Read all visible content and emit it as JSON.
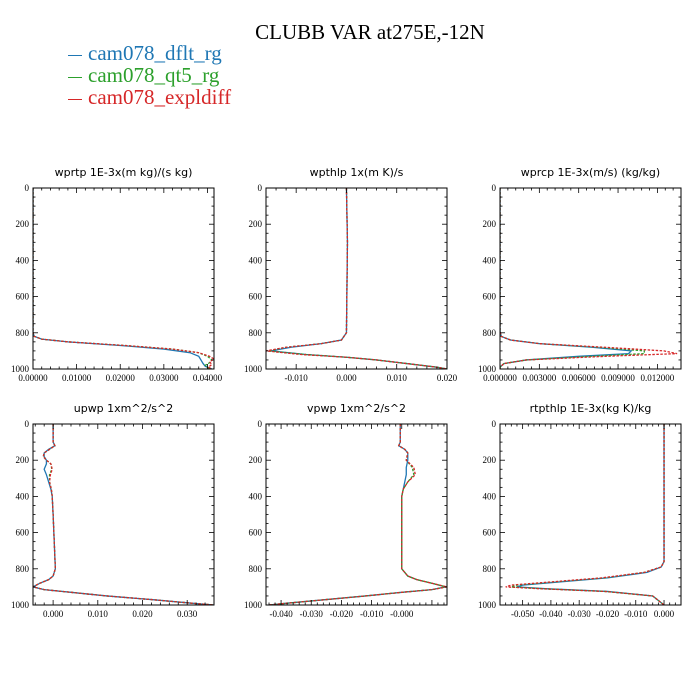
{
  "title": "CLUBB VAR at275E,-12N",
  "legend": [
    {
      "label": "cam078_dflt_rg",
      "color": "#1f77b4",
      "dash": false
    },
    {
      "label": "cam078_qt5_rg",
      "color": "#2ca02c",
      "dash": true
    },
    {
      "label": "cam078_expldiff",
      "color": "#d62728",
      "dash": true
    }
  ],
  "chart_data": [
    {
      "type": "line",
      "title": "wprtp  1E-3x(m kg)/(s kg)",
      "xlim": [
        0,
        0.0415
      ],
      "ylim": [
        0,
        1000
      ],
      "xticks": [
        0,
        0.01,
        0.02,
        0.03,
        0.04
      ],
      "xtick_labels": [
        "0.00000",
        "0.01000",
        "0.02000",
        "0.03000",
        "0.04000"
      ],
      "yticks": [
        0,
        200,
        400,
        600,
        800,
        1000
      ],
      "ytick_labels": [
        "0",
        "200",
        "400",
        "600",
        "800",
        "1000"
      ],
      "series": [
        {
          "y": [
            0,
            800,
            820,
            835,
            850,
            870,
            890,
            910,
            930,
            950,
            970,
            985,
            995,
            1000
          ],
          "values": [
            0,
            0,
            0.0003,
            0.002,
            0.008,
            0.02,
            0.03,
            0.036,
            0.038,
            0.0385,
            0.039,
            0.0395,
            0.0405,
            0.041
          ]
        },
        {
          "y": [
            0,
            800,
            820,
            835,
            850,
            870,
            890,
            910,
            930,
            950,
            965,
            980,
            990,
            1000
          ],
          "values": [
            0,
            0,
            0.0003,
            0.002,
            0.008,
            0.021,
            0.032,
            0.038,
            0.04,
            0.041,
            0.0405,
            0.0395,
            0.04,
            0.0405
          ]
        },
        {
          "y": [
            0,
            800,
            820,
            835,
            850,
            870,
            890,
            910,
            930,
            945,
            960,
            975,
            990,
            1000
          ],
          "values": [
            0,
            0,
            0.0003,
            0.002,
            0.008,
            0.021,
            0.032,
            0.038,
            0.0405,
            0.0415,
            0.0405,
            0.041,
            0.0402,
            0.041
          ]
        }
      ]
    },
    {
      "type": "line",
      "title": "wpthlp  1x(m K)/s",
      "xlim": [
        -0.016,
        0.02
      ],
      "ylim": [
        0,
        1000
      ],
      "xticks": [
        -0.01,
        0,
        0.01,
        0.02
      ],
      "xtick_labels": [
        "-0.010",
        "0.000",
        "0.010",
        "0.020"
      ],
      "yticks": [
        0,
        200,
        400,
        600,
        800,
        1000
      ],
      "ytick_labels": [
        "0",
        "200",
        "400",
        "600",
        "800",
        "1000"
      ],
      "series": [
        {
          "y": [
            0,
            300,
            800,
            840,
            860,
            880,
            900,
            920,
            935,
            950,
            970,
            990,
            1000
          ],
          "values": [
            0,
            0.0002,
            0,
            -0.001,
            -0.005,
            -0.011,
            -0.015,
            -0.008,
            0.0,
            0.006,
            0.012,
            0.018,
            0.02
          ]
        },
        {
          "y": [
            0,
            300,
            800,
            840,
            860,
            880,
            900,
            920,
            935,
            950,
            970,
            990,
            1000
          ],
          "values": [
            0,
            0.0002,
            0,
            -0.001,
            -0.005,
            -0.012,
            -0.0155,
            -0.008,
            0.0,
            0.006,
            0.012,
            0.018,
            0.02
          ]
        },
        {
          "y": [
            0,
            300,
            800,
            840,
            860,
            880,
            900,
            920,
            935,
            950,
            970,
            990,
            1000
          ],
          "values": [
            0,
            0.0002,
            0,
            -0.001,
            -0.005,
            -0.012,
            -0.016,
            -0.009,
            0.0,
            0.006,
            0.012,
            0.018,
            0.02
          ]
        }
      ]
    },
    {
      "type": "line",
      "title": "wprcp  1E-3x(m/s) (kg/kg)",
      "xlim": [
        0,
        0.0138
      ],
      "ylim": [
        0,
        1000
      ],
      "xticks": [
        0,
        0.003,
        0.006,
        0.009,
        0.012
      ],
      "xtick_labels": [
        "0.000000",
        "0.003000",
        "0.006000",
        "0.009000",
        "0.012000"
      ],
      "yticks": [
        0,
        200,
        400,
        600,
        800,
        1000
      ],
      "ytick_labels": [
        "0",
        "200",
        "400",
        "600",
        "800",
        "1000"
      ],
      "series": [
        {
          "y": [
            0,
            790,
            820,
            840,
            860,
            880,
            900,
            915,
            930,
            950,
            970,
            990,
            1000
          ],
          "values": [
            0,
            0,
            0.0001,
            0.0008,
            0.003,
            0.007,
            0.01,
            0.0098,
            0.006,
            0.002,
            0.0003,
            0,
            0
          ]
        },
        {
          "y": [
            0,
            790,
            820,
            840,
            860,
            880,
            900,
            915,
            930,
            950,
            970,
            990,
            1000
          ],
          "values": [
            0,
            0,
            0.0001,
            0.0008,
            0.003,
            0.0075,
            0.011,
            0.011,
            0.007,
            0.002,
            0.0003,
            0,
            0
          ]
        },
        {
          "y": [
            0,
            790,
            820,
            840,
            860,
            880,
            900,
            915,
            930,
            950,
            970,
            990,
            1000
          ],
          "values": [
            0,
            0,
            0.0001,
            0.0008,
            0.003,
            0.008,
            0.0125,
            0.0135,
            0.008,
            0.002,
            0.0003,
            0,
            0
          ]
        }
      ]
    },
    {
      "type": "line",
      "title": "upwp  1xm^2/s^2",
      "xlim": [
        -0.0045,
        0.036
      ],
      "ylim": [
        0,
        1000
      ],
      "xticks": [
        0,
        0.01,
        0.02,
        0.03
      ],
      "xtick_labels": [
        "0.000",
        "0.010",
        "0.020",
        "0.030"
      ],
      "yticks": [
        0,
        200,
        400,
        600,
        800,
        1000
      ],
      "ytick_labels": [
        "0",
        "200",
        "400",
        "600",
        "800",
        "1000"
      ],
      "series": [
        {
          "y": [
            0,
            100,
            120,
            140,
            160,
            180,
            200,
            220,
            250,
            280,
            320,
            360,
            400,
            500,
            800,
            840,
            860,
            880,
            900,
            915,
            930,
            950,
            970,
            990,
            1000
          ],
          "values": [
            0,
            0,
            0.0004,
            -0.001,
            -0.002,
            -0.002,
            -0.0015,
            -0.0015,
            -0.002,
            -0.0015,
            -0.001,
            -0.0005,
            -0.0002,
            0,
            0.0005,
            0,
            -0.001,
            -0.003,
            -0.0045,
            -0.002,
            0.004,
            0.012,
            0.022,
            0.031,
            0.036
          ]
        },
        {
          "y": [
            0,
            100,
            120,
            140,
            160,
            180,
            200,
            220,
            250,
            280,
            320,
            360,
            400,
            500,
            800,
            840,
            860,
            880,
            900,
            915,
            930,
            950,
            970,
            990,
            1000
          ],
          "values": [
            0,
            0,
            0.0004,
            -0.0008,
            -0.002,
            -0.0022,
            -0.0015,
            -0.0005,
            -0.0003,
            -0.0008,
            -0.0008,
            -0.0004,
            -0.0002,
            0,
            0.0005,
            0,
            -0.001,
            -0.003,
            -0.0045,
            -0.002,
            0.004,
            0.012,
            0.022,
            0.031,
            0.036
          ]
        },
        {
          "y": [
            0,
            100,
            120,
            140,
            160,
            180,
            200,
            220,
            250,
            280,
            320,
            360,
            400,
            500,
            800,
            840,
            860,
            880,
            900,
            915,
            930,
            950,
            970,
            990,
            1000
          ],
          "values": [
            0,
            0,
            0.0004,
            -0.0008,
            -0.002,
            -0.0022,
            -0.0015,
            -0.0005,
            -0.0002,
            -0.0006,
            -0.0008,
            -0.0004,
            -0.0002,
            0,
            0.0005,
            0,
            -0.001,
            -0.003,
            -0.0045,
            -0.002,
            0.004,
            0.012,
            0.022,
            0.031,
            0.036
          ]
        }
      ]
    },
    {
      "type": "line",
      "title": "vpwp  1xm^2/s^2",
      "xlim": [
        -0.045,
        0.015
      ],
      "ylim": [
        0,
        1000
      ],
      "xticks": [
        -0.04,
        -0.03,
        -0.02,
        -0.01,
        0
      ],
      "xtick_labels": [
        "-0.040",
        "-0.030",
        "-0.020",
        "-0.010",
        "-0.000"
      ],
      "yticks": [
        0,
        200,
        400,
        600,
        800,
        1000
      ],
      "ytick_labels": [
        "0",
        "200",
        "400",
        "600",
        "800",
        "1000"
      ],
      "series": [
        {
          "y": [
            0,
            100,
            120,
            140,
            160,
            200,
            240,
            280,
            320,
            360,
            400,
            600,
            800,
            840,
            860,
            880,
            900,
            915,
            930,
            950,
            970,
            990,
            1000
          ],
          "values": [
            -0.0005,
            -0.0005,
            -0.001,
            0.001,
            0.002,
            0.002,
            0.0015,
            0.0015,
            0.001,
            0.0005,
            0,
            0,
            0,
            0.002,
            0.005,
            0.01,
            0.0145,
            0.01,
            0.0,
            -0.012,
            -0.025,
            -0.038,
            -0.044
          ]
        },
        {
          "y": [
            0,
            100,
            120,
            140,
            160,
            200,
            240,
            280,
            320,
            360,
            400,
            600,
            800,
            840,
            860,
            880,
            900,
            915,
            930,
            950,
            970,
            990,
            1000
          ],
          "values": [
            -0.0005,
            -0.0005,
            -0.001,
            0.001,
            0.002,
            0.0015,
            0.0035,
            0.004,
            0.002,
            0.0005,
            0,
            0,
            0,
            0.002,
            0.005,
            0.01,
            0.0148,
            0.01,
            0.0,
            -0.012,
            -0.025,
            -0.038,
            -0.044
          ]
        },
        {
          "y": [
            0,
            100,
            120,
            140,
            160,
            200,
            240,
            280,
            320,
            360,
            400,
            600,
            800,
            840,
            860,
            880,
            900,
            915,
            930,
            950,
            970,
            990,
            1000
          ],
          "values": [
            -0.0005,
            -0.0005,
            -0.001,
            0.001,
            0.002,
            0.0015,
            0.004,
            0.0045,
            0.002,
            0.0005,
            0,
            0,
            0,
            0.002,
            0.005,
            0.01,
            0.015,
            0.01,
            0.0,
            -0.012,
            -0.025,
            -0.038,
            -0.044
          ]
        }
      ]
    },
    {
      "type": "line",
      "title": "rtpthlp  1E-3x(kg K)/kg",
      "xlim": [
        -0.058,
        0.006
      ],
      "ylim": [
        0,
        1000
      ],
      "xticks": [
        -0.05,
        -0.04,
        -0.03,
        -0.02,
        -0.01,
        0
      ],
      "xtick_labels": [
        "-0.050",
        "-0.040",
        "-0.030",
        "-0.020",
        "-0.010",
        "0.000"
      ],
      "yticks": [
        0,
        200,
        400,
        600,
        800,
        1000
      ],
      "ytick_labels": [
        "0",
        "200",
        "400",
        "600",
        "800",
        "1000"
      ],
      "series": [
        {
          "y": [
            0,
            760,
            790,
            820,
            850,
            870,
            890,
            900,
            910,
            925,
            950,
            1000
          ],
          "values": [
            0,
            0,
            -0.001,
            -0.006,
            -0.02,
            -0.035,
            -0.05,
            -0.052,
            -0.042,
            -0.02,
            -0.004,
            0
          ]
        },
        {
          "y": [
            0,
            760,
            790,
            820,
            850,
            870,
            890,
            900,
            910,
            925,
            950,
            1000
          ],
          "values": [
            0,
            0,
            -0.001,
            -0.007,
            -0.021,
            -0.037,
            -0.052,
            -0.054,
            -0.043,
            -0.021,
            -0.004,
            0
          ]
        },
        {
          "y": [
            0,
            760,
            790,
            820,
            850,
            870,
            890,
            900,
            910,
            925,
            950,
            1000
          ],
          "values": [
            0,
            0,
            -0.001,
            -0.007,
            -0.022,
            -0.038,
            -0.054,
            -0.056,
            -0.044,
            -0.021,
            -0.004,
            0
          ]
        }
      ]
    }
  ]
}
